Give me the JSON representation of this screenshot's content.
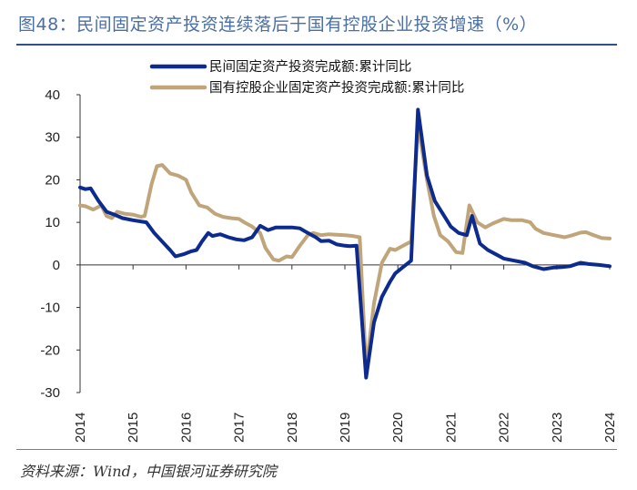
{
  "title": "图48：民间固定资产投资连续落后于国有控股企业投资增速（%）",
  "source": "资料来源：Wind，中国银河证券研究院",
  "chart_data": {
    "type": "line",
    "ylim": [
      -30,
      40
    ],
    "yticks": [
      40,
      30,
      20,
      10,
      0,
      -10,
      -20,
      -30
    ],
    "x_range": [
      2014.0,
      2024.0
    ],
    "xticks": [
      2014,
      2015,
      2016,
      2017,
      2018,
      2019,
      2020,
      2021,
      2022,
      2023,
      2024
    ],
    "xtick_labels": [
      "2014",
      "2015",
      "2016",
      "2017",
      "2018",
      "2019",
      "2020",
      "2021",
      "2022",
      "2023",
      "2024"
    ],
    "legend_position": "top-center",
    "series": [
      {
        "name": "民间固定资产投资完成额:累计同比",
        "color": "#0d2b8e",
        "points": [
          [
            2014.0,
            18.2
          ],
          [
            2014.1,
            17.8
          ],
          [
            2014.2,
            18.0
          ],
          [
            2014.35,
            15.0
          ],
          [
            2014.5,
            12.5
          ],
          [
            2014.65,
            11.8
          ],
          [
            2014.8,
            11.0
          ],
          [
            2015.0,
            10.5
          ],
          [
            2015.25,
            10.0
          ],
          [
            2015.4,
            7.5
          ],
          [
            2015.55,
            5.5
          ],
          [
            2015.7,
            3.5
          ],
          [
            2015.8,
            2.0
          ],
          [
            2015.95,
            2.5
          ],
          [
            2016.1,
            3.2
          ],
          [
            2016.2,
            3.5
          ],
          [
            2016.3,
            5.5
          ],
          [
            2016.42,
            7.5
          ],
          [
            2016.5,
            6.8
          ],
          [
            2016.65,
            7.2
          ],
          [
            2016.8,
            6.5
          ],
          [
            2016.95,
            6.0
          ],
          [
            2017.1,
            5.8
          ],
          [
            2017.25,
            6.5
          ],
          [
            2017.4,
            9.2
          ],
          [
            2017.55,
            8.2
          ],
          [
            2017.7,
            8.8
          ],
          [
            2017.85,
            8.8
          ],
          [
            2018.0,
            8.8
          ],
          [
            2018.15,
            8.6
          ],
          [
            2018.3,
            7.5
          ],
          [
            2018.45,
            6.5
          ],
          [
            2018.55,
            5.6
          ],
          [
            2018.7,
            5.7
          ],
          [
            2018.85,
            4.8
          ],
          [
            2019.0,
            4.5
          ],
          [
            2019.1,
            4.4
          ],
          [
            2019.22,
            4.5
          ],
          [
            2019.4,
            -26.5
          ],
          [
            2019.55,
            -13.5
          ],
          [
            2019.7,
            -7.5
          ],
          [
            2019.85,
            -4.0
          ],
          [
            2019.95,
            -2.0
          ],
          [
            2020.1,
            -0.5
          ],
          [
            2020.25,
            1.0
          ],
          [
            2020.38,
            36.5
          ],
          [
            2020.55,
            21.0
          ],
          [
            2020.7,
            15.0
          ],
          [
            2020.85,
            12.0
          ],
          [
            2021.0,
            9.0
          ],
          [
            2021.15,
            7.5
          ],
          [
            2021.3,
            7.0
          ],
          [
            2021.4,
            11.5
          ],
          [
            2021.55,
            5.0
          ],
          [
            2021.7,
            3.5
          ],
          [
            2021.85,
            2.5
          ],
          [
            2022.0,
            1.5
          ],
          [
            2022.2,
            1.0
          ],
          [
            2022.4,
            0.5
          ],
          [
            2022.55,
            -0.3
          ],
          [
            2022.75,
            -1.0
          ],
          [
            2022.95,
            -0.6
          ],
          [
            2023.1,
            -0.5
          ],
          [
            2023.25,
            -0.3
          ],
          [
            2023.45,
            0.5
          ],
          [
            2023.6,
            0.2
          ],
          [
            2023.8,
            0.0
          ],
          [
            2024.0,
            -0.3
          ]
        ]
      },
      {
        "name": "国有控股企业固定资产投资完成额:累计同比",
        "color": "#c1a57a",
        "points": [
          [
            2014.0,
            14.0
          ],
          [
            2014.1,
            13.8
          ],
          [
            2014.25,
            13.0
          ],
          [
            2014.4,
            14.0
          ],
          [
            2014.5,
            11.5
          ],
          [
            2014.6,
            11.0
          ],
          [
            2014.7,
            12.5
          ],
          [
            2014.85,
            12.0
          ],
          [
            2015.0,
            11.8
          ],
          [
            2015.15,
            11.3
          ],
          [
            2015.22,
            11.5
          ],
          [
            2015.35,
            19.0
          ],
          [
            2015.45,
            23.2
          ],
          [
            2015.55,
            23.5
          ],
          [
            2015.7,
            21.5
          ],
          [
            2015.85,
            21.0
          ],
          [
            2016.0,
            20.0
          ],
          [
            2016.1,
            17.0
          ],
          [
            2016.25,
            14.0
          ],
          [
            2016.4,
            13.5
          ],
          [
            2016.55,
            12.0
          ],
          [
            2016.7,
            11.3
          ],
          [
            2016.85,
            11.0
          ],
          [
            2017.0,
            10.8
          ],
          [
            2017.1,
            10.0
          ],
          [
            2017.25,
            9.0
          ],
          [
            2017.4,
            7.5
          ],
          [
            2017.5,
            4.0
          ],
          [
            2017.65,
            1.3
          ],
          [
            2017.75,
            1.0
          ],
          [
            2017.9,
            2.0
          ],
          [
            2018.0,
            1.8
          ],
          [
            2018.15,
            4.5
          ],
          [
            2018.3,
            7.0
          ],
          [
            2018.4,
            7.5
          ],
          [
            2018.55,
            7.0
          ],
          [
            2018.7,
            7.2
          ],
          [
            2018.85,
            7.1
          ],
          [
            2019.0,
            7.0
          ],
          [
            2019.15,
            6.8
          ],
          [
            2019.28,
            6.5
          ],
          [
            2019.4,
            -24.5
          ],
          [
            2019.55,
            -9.0
          ],
          [
            2019.7,
            0.5
          ],
          [
            2019.85,
            3.8
          ],
          [
            2019.95,
            3.5
          ],
          [
            2020.1,
            4.5
          ],
          [
            2020.25,
            5.5
          ],
          [
            2020.38,
            33.0
          ],
          [
            2020.55,
            20.0
          ],
          [
            2020.68,
            11.5
          ],
          [
            2020.8,
            7.0
          ],
          [
            2020.95,
            5.5
          ],
          [
            2021.1,
            3.0
          ],
          [
            2021.22,
            2.8
          ],
          [
            2021.35,
            14.0
          ],
          [
            2021.5,
            10.0
          ],
          [
            2021.65,
            8.8
          ],
          [
            2021.8,
            9.8
          ],
          [
            2022.0,
            10.8
          ],
          [
            2022.15,
            10.5
          ],
          [
            2022.35,
            10.5
          ],
          [
            2022.5,
            10.0
          ],
          [
            2022.6,
            8.5
          ],
          [
            2022.75,
            7.5
          ],
          [
            2022.95,
            7.0
          ],
          [
            2023.15,
            6.5
          ],
          [
            2023.3,
            7.0
          ],
          [
            2023.45,
            7.6
          ],
          [
            2023.55,
            7.7
          ],
          [
            2023.7,
            7.0
          ],
          [
            2023.85,
            6.3
          ],
          [
            2024.0,
            6.2
          ]
        ]
      }
    ]
  }
}
